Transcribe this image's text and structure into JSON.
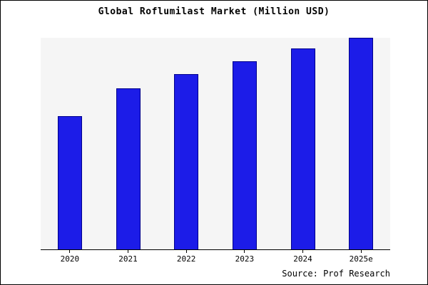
{
  "title": "Global Roflumilast Market (Million USD)",
  "source": "Source: Prof Research",
  "colors": {
    "bar_fill": "#1c1ce8",
    "bar_border": "#00008b",
    "plot_background": "#f5f5f5",
    "page_background": "#ffffff",
    "axis": "#000000",
    "text": "#000000"
  },
  "chart_data": {
    "type": "bar",
    "categories": [
      "2020",
      "2021",
      "2022",
      "2023",
      "2024",
      "2025e"
    ],
    "values": [
      63,
      76,
      83,
      89,
      95,
      100
    ],
    "title": "Global Roflumilast Market (Million USD)",
    "xlabel": "",
    "ylabel": "",
    "ylim": [
      0,
      100
    ],
    "grid": false,
    "legend": false,
    "note": "No y-axis tick labels are visible in the chart; values are relative bar heights as percent of the tallest bar (2025e = 100)."
  }
}
